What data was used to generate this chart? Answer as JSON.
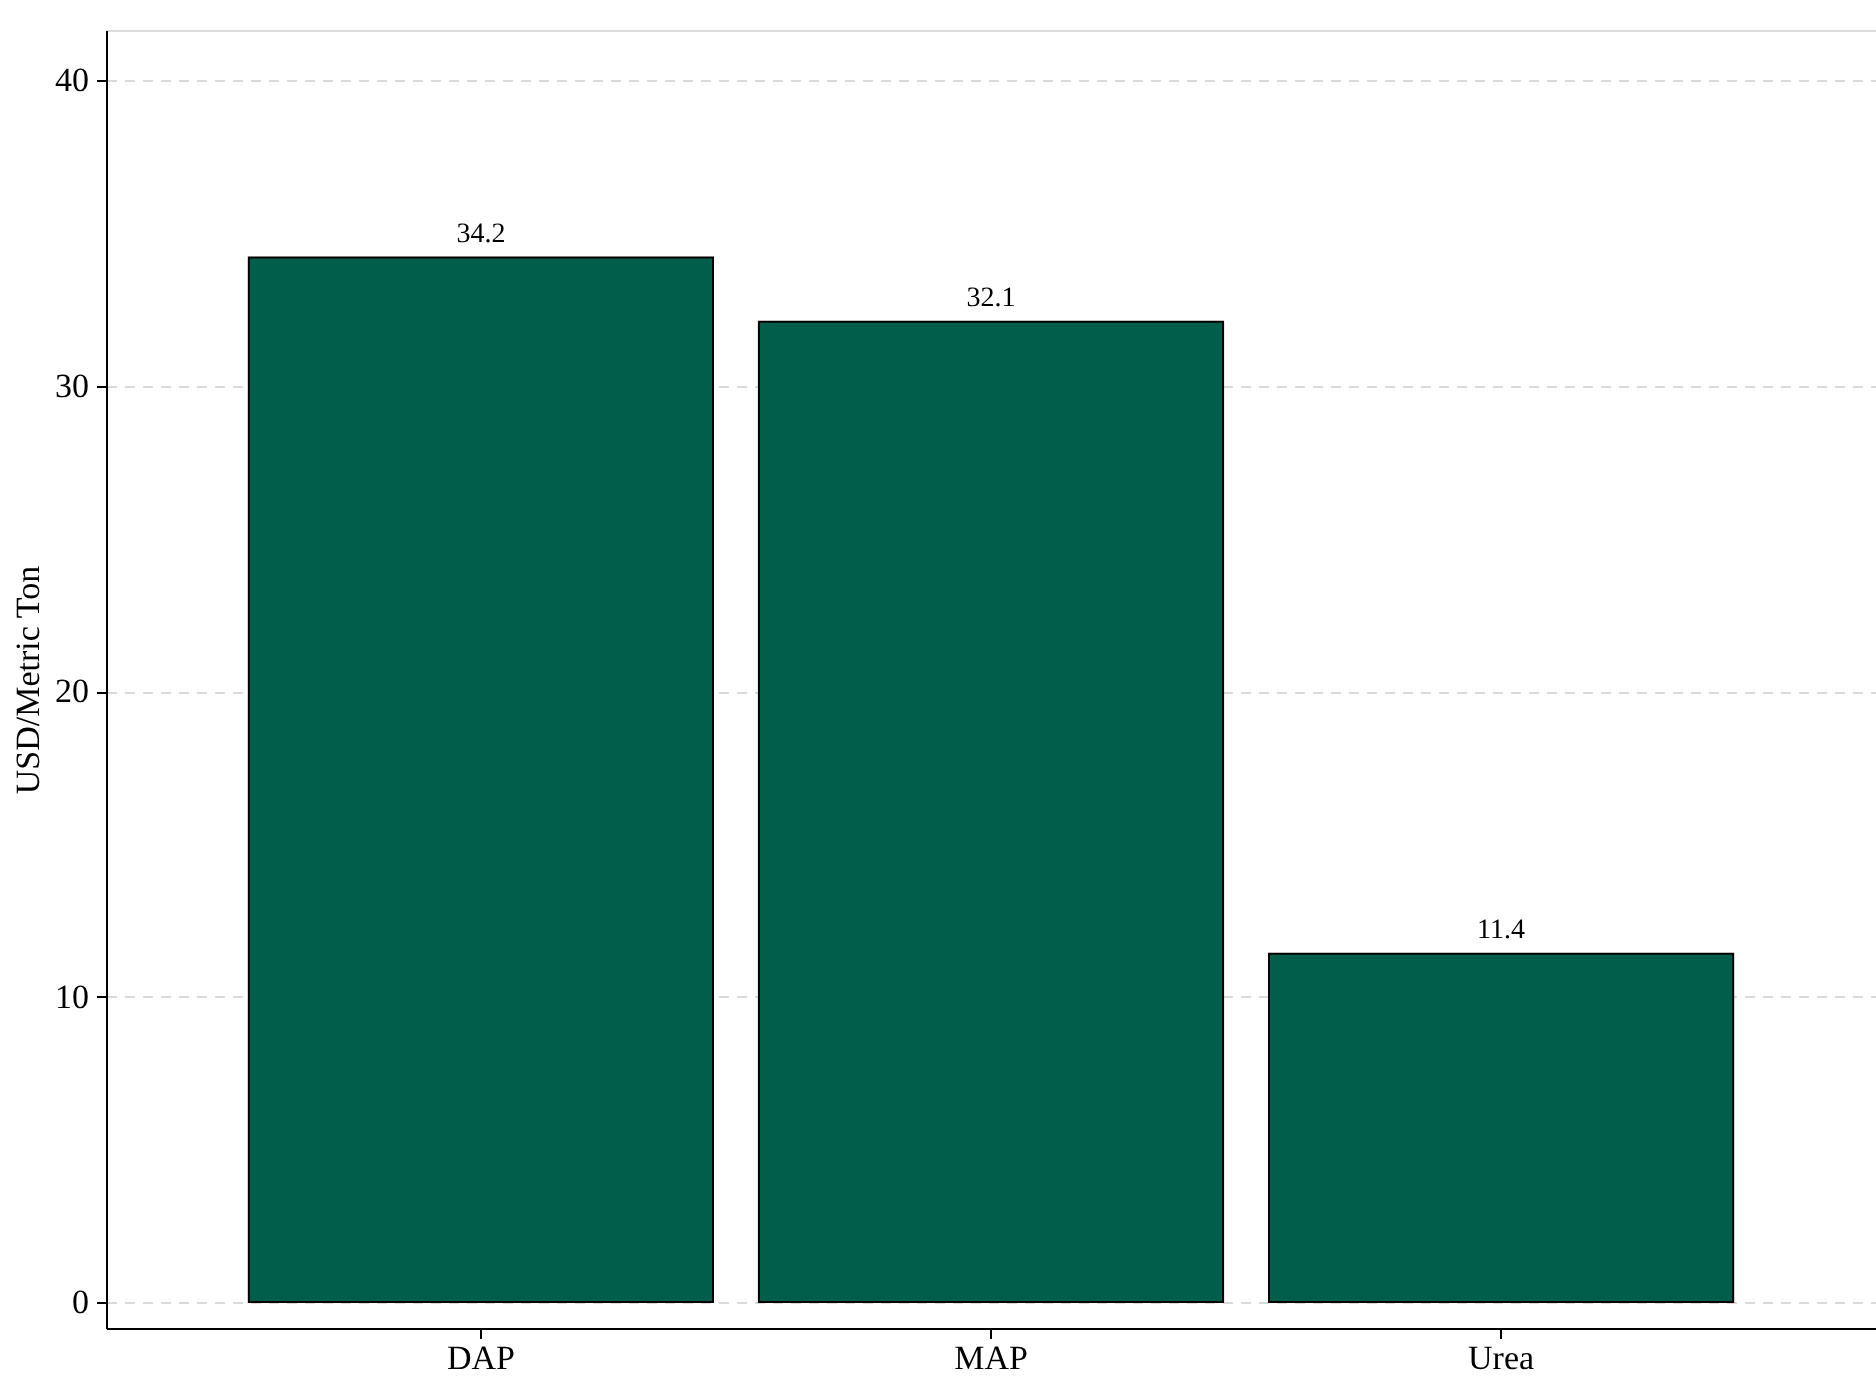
{
  "chart_data": {
    "type": "bar",
    "ylabel": "USD/Metric Ton",
    "categories": [
      "DAP",
      "MAP",
      "Urea"
    ],
    "values": [
      34.2,
      32.1,
      11.4
    ],
    "color": "#005e4a",
    "ylim": [
      -0.85,
      41.65
    ],
    "yticks": [
      0,
      10,
      20,
      30,
      40
    ],
    "grid": "y",
    "data_labels": true
  }
}
